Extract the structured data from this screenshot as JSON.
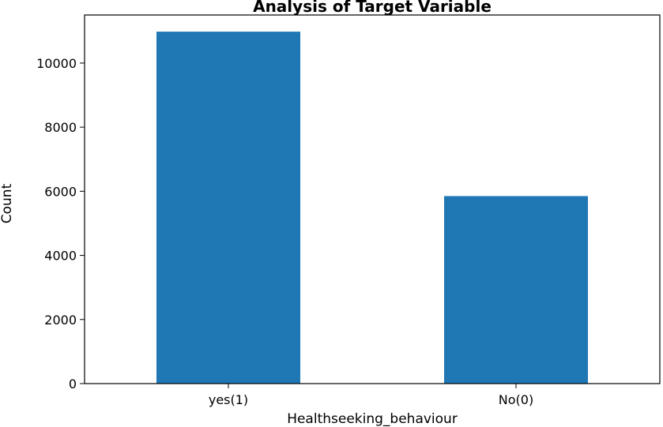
{
  "chart_data": {
    "type": "bar",
    "title": "Analysis of Target Variable",
    "xlabel": "Healthseeking_behaviour",
    "ylabel": "Count",
    "categories": [
      "yes(1)",
      "No(0)"
    ],
    "values": [
      10980,
      5850
    ],
    "ylim": [
      0,
      11500
    ],
    "yticks": [
      0,
      2000,
      4000,
      6000,
      8000,
      10000
    ],
    "grid": false,
    "bar_color": "#1f77b4"
  }
}
